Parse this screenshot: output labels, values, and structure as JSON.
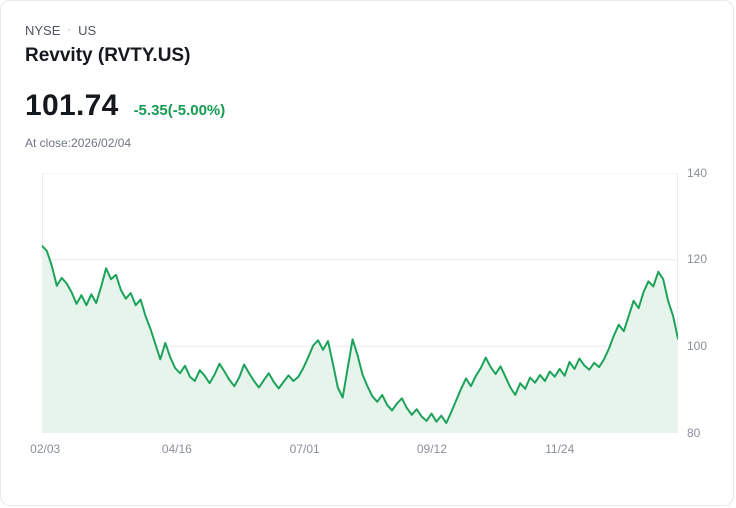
{
  "header": {
    "exchange": "NYSE",
    "separator": "·",
    "market": "US",
    "title": "Revvity (RVTY.US)"
  },
  "quote": {
    "price": "101.74",
    "change": "-5.35(-5.00%)",
    "change_color": "#169c53",
    "close_info": "At close:2026/02/04"
  },
  "chart_data": {
    "type": "area",
    "title": "Revvity (RVTY.US) price history",
    "legend": [],
    "grid": true,
    "y_axis_position": "right",
    "ylim": [
      80,
      140
    ],
    "y_ticks": [
      80,
      100,
      120,
      140
    ],
    "x_ticks": [
      {
        "label": "02/03",
        "pos": 0.005
      },
      {
        "label": "04/16",
        "pos": 0.212
      },
      {
        "label": "07/01",
        "pos": 0.413
      },
      {
        "label": "09/12",
        "pos": 0.613
      },
      {
        "label": "11/24",
        "pos": 0.814
      }
    ],
    "line_color": "#1ca35a",
    "fill_color": "#e7f4ec",
    "grid_color": "#ececec",
    "values": [
      123.2,
      122.0,
      118.5,
      114.0,
      115.8,
      114.5,
      112.5,
      109.8,
      111.8,
      109.5,
      112.0,
      110.0,
      113.8,
      118.0,
      115.5,
      116.5,
      113.0,
      111.0,
      112.3,
      109.5,
      110.8,
      107.0,
      104.0,
      100.5,
      97.0,
      100.8,
      97.5,
      95.0,
      93.8,
      95.5,
      93.0,
      92.0,
      94.5,
      93.2,
      91.5,
      93.5,
      96.0,
      94.2,
      92.3,
      90.8,
      92.8,
      95.8,
      93.8,
      92.0,
      90.5,
      92.2,
      93.8,
      91.8,
      90.3,
      91.8,
      93.3,
      92.0,
      93.0,
      95.0,
      97.5,
      100.2,
      101.4,
      99.2,
      101.2,
      96.0,
      90.5,
      88.2,
      95.0,
      101.6,
      98.0,
      93.5,
      90.8,
      88.5,
      87.2,
      88.8,
      86.5,
      85.2,
      86.8,
      88.0,
      85.8,
      84.2,
      85.5,
      83.8,
      82.8,
      84.5,
      82.6,
      84.0,
      82.3,
      84.8,
      87.5,
      90.2,
      92.6,
      90.8,
      93.2,
      95.0,
      97.4,
      95.2,
      93.6,
      95.4,
      93.0,
      90.5,
      88.8,
      91.5,
      90.2,
      92.8,
      91.6,
      93.4,
      92.0,
      94.2,
      93.0,
      94.8,
      93.2,
      96.4,
      94.8,
      97.2,
      95.6,
      94.6,
      96.2,
      95.2,
      97.0,
      99.5,
      102.5,
      105.0,
      103.5,
      107.0,
      110.5,
      108.8,
      112.5,
      115.0,
      113.8,
      117.2,
      115.5,
      110.5,
      107.0,
      101.74
    ]
  }
}
